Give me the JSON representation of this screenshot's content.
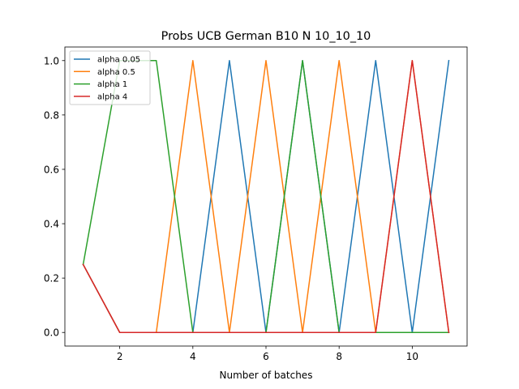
{
  "chart_data": {
    "type": "line",
    "title": "Probs UCB German B10 N 10_10_10",
    "xlabel": "Number of batches",
    "ylabel": "",
    "xlim": [
      0.5,
      11.5
    ],
    "ylim": [
      -0.05,
      1.05
    ],
    "xticks": [
      2,
      4,
      6,
      8,
      10
    ],
    "yticks": [
      0.0,
      0.2,
      0.4,
      0.6,
      0.8,
      1.0
    ],
    "ytick_labels": [
      "0.0",
      "0.2",
      "0.4",
      "0.6",
      "0.8",
      "1.0"
    ],
    "grid": false,
    "legend_placement": "top-left",
    "x": [
      1,
      2,
      3,
      4,
      5,
      6,
      7,
      8,
      9,
      10,
      11
    ],
    "series": [
      {
        "name": "alpha 0.05",
        "color": "#1f77b4",
        "values": [
          0.25,
          0,
          0,
          0,
          1,
          0,
          1,
          0,
          1,
          0,
          1
        ]
      },
      {
        "name": "alpha 0.5",
        "color": "#ff7f0e",
        "values": [
          0.25,
          0,
          0,
          1,
          0,
          1,
          0,
          1,
          0,
          1,
          0
        ]
      },
      {
        "name": "alpha 1",
        "color": "#2ca02c",
        "values": [
          0.25,
          1,
          1,
          0,
          0,
          0,
          1,
          0,
          0,
          0,
          0
        ]
      },
      {
        "name": "alpha 4",
        "color": "#d62728",
        "values": [
          0.25,
          0,
          0,
          0,
          0,
          0,
          0,
          0,
          0,
          1,
          0
        ]
      }
    ]
  }
}
